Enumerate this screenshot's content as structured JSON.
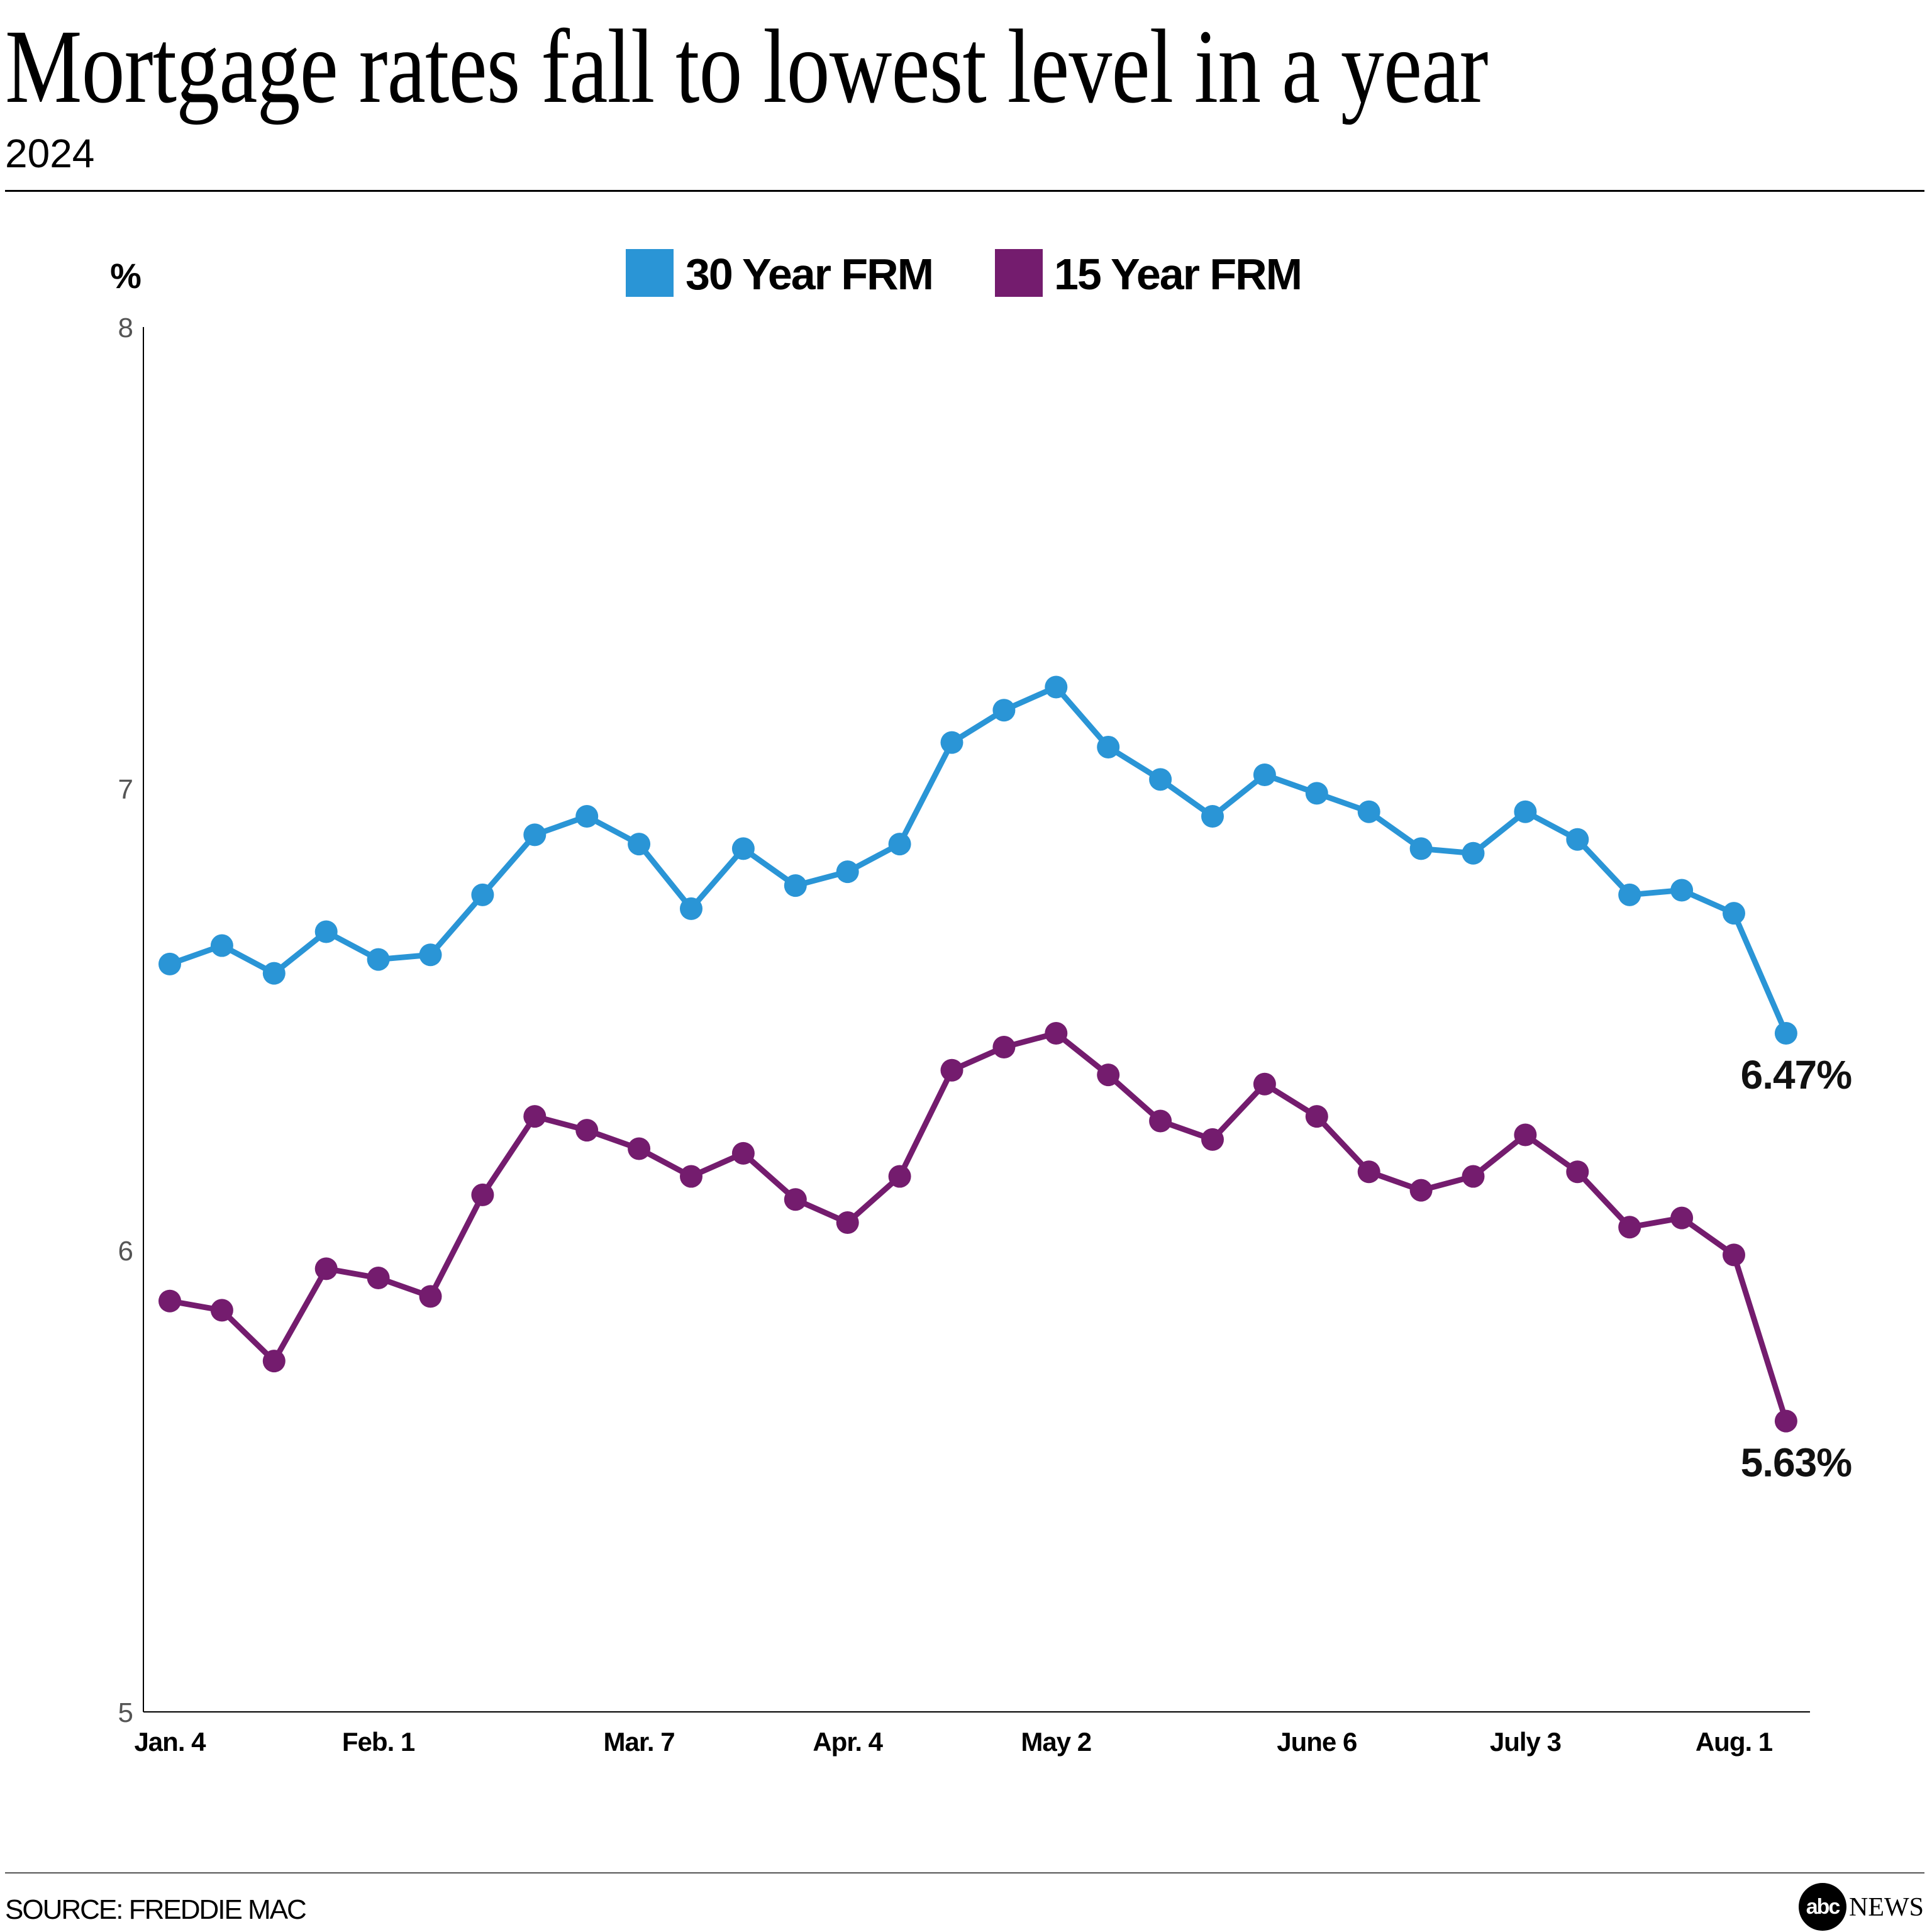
{
  "title": "Mortgage rates fall to lowest level in a year",
  "subtitle": "2024",
  "source": "SOURCE: FREDDIE MAC",
  "logo": {
    "text": "abc",
    "news": "NEWS"
  },
  "chart_data": {
    "type": "line",
    "title": "Mortgage rates fall to lowest level in a year",
    "subtitle": "2024",
    "ylabel": "%",
    "ylim": [
      5,
      8
    ],
    "yticks": [
      5,
      6,
      7,
      8
    ],
    "xtick_labels": [
      {
        "label": "Jan. 4",
        "index": 0
      },
      {
        "label": "Feb. 1",
        "index": 4
      },
      {
        "label": "Mar. 7",
        "index": 9
      },
      {
        "label": "Apr. 4",
        "index": 13
      },
      {
        "label": "May 2",
        "index": 17
      },
      {
        "label": "June 6",
        "index": 22
      },
      {
        "label": "July 3",
        "index": 26
      },
      {
        "label": "Aug. 1",
        "index": 30
      }
    ],
    "legend_position": "top-center",
    "grid": false,
    "series": [
      {
        "name": "30 Year FRM",
        "color": "#2a95d6",
        "values": [
          6.62,
          6.66,
          6.6,
          6.69,
          6.63,
          6.64,
          6.77,
          6.9,
          6.94,
          6.88,
          6.74,
          6.87,
          6.79,
          6.82,
          6.88,
          7.1,
          7.17,
          7.22,
          7.09,
          7.02,
          6.94,
          7.03,
          6.99,
          6.95,
          6.87,
          6.86,
          6.95,
          6.89,
          6.77,
          6.78,
          6.73,
          6.47
        ],
        "end_label": "6.47%"
      },
      {
        "name": "15 Year FRM",
        "color": "#741c6e",
        "values": [
          5.89,
          5.87,
          5.76,
          5.96,
          5.94,
          5.9,
          6.12,
          6.29,
          6.26,
          6.22,
          6.16,
          6.21,
          6.11,
          6.06,
          6.16,
          6.39,
          6.44,
          6.47,
          6.38,
          6.28,
          6.24,
          6.36,
          6.29,
          6.17,
          6.13,
          6.16,
          6.25,
          6.17,
          6.05,
          6.07,
          5.99,
          5.63
        ],
        "end_label": "5.63%"
      }
    ]
  }
}
